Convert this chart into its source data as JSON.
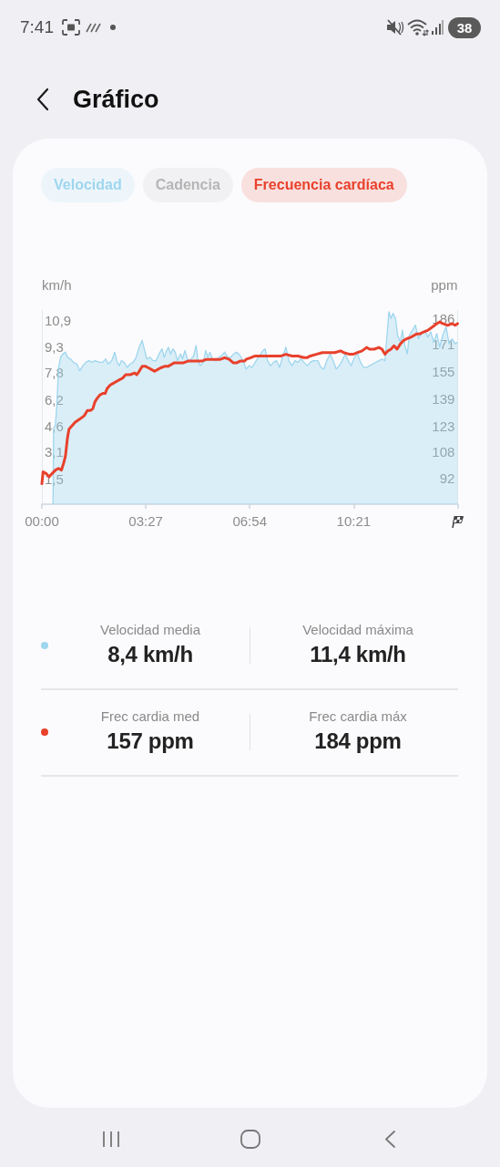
{
  "chart_data": {
    "type": "line",
    "title": "Gráfico",
    "ylabel": "km/h",
    "y2label": "ppm",
    "xlim": [
      0,
      13.8
    ],
    "xticks": [
      {
        "value": 0,
        "label": "00:00"
      },
      {
        "value": 3.45,
        "label": "03:27"
      },
      {
        "value": 6.9,
        "label": "06:54"
      },
      {
        "value": 10.35,
        "label": "10:21"
      },
      {
        "value": 13.8,
        "label": null
      }
    ],
    "ylim": [
      0,
      11.5
    ],
    "yticks": [
      {
        "value": 1.5,
        "label": "1,5"
      },
      {
        "value": 3.1,
        "label": "3,1"
      },
      {
        "value": 4.6,
        "label": "4,6"
      },
      {
        "value": 6.2,
        "label": "6,2"
      },
      {
        "value": 7.8,
        "label": "7,8"
      },
      {
        "value": 9.3,
        "label": "9,3"
      },
      {
        "value": 10.9,
        "label": "10,9"
      }
    ],
    "y2lim": [
      77,
      191
    ],
    "y2ticks": [
      92,
      108,
      123,
      139,
      155,
      171,
      186
    ],
    "legend": "top",
    "annotations": [
      "7:41",
      "38",
      "Velocidad media",
      "8,4 km/h",
      "Velocidad máxima",
      "11,4 km/h",
      "Frec cardia med",
      "157 ppm",
      "Frec cardia máx",
      "184 ppm"
    ],
    "series": [
      {
        "name": "Velocidad",
        "type": "area",
        "color": "#9ed6ee",
        "x": [
          0.37,
          0.39,
          0.45,
          0.5,
          0.55,
          0.62,
          0.7,
          0.78,
          0.85,
          0.95,
          1.05,
          1.16,
          1.26,
          1.36,
          1.46,
          1.56,
          1.66,
          1.76,
          1.92,
          2.02,
          2.12,
          2.2,
          2.32,
          2.42,
          2.5,
          2.57,
          2.64,
          2.73,
          2.83,
          2.93,
          3.03,
          3.13,
          3.23,
          3.33,
          3.41,
          3.49,
          3.59,
          3.69,
          3.79,
          3.89,
          3.99,
          4.06,
          4.14,
          4.2,
          4.27,
          4.35,
          4.43,
          4.5,
          4.6,
          4.67,
          4.75,
          4.85,
          4.96,
          5.04,
          5.12,
          5.18,
          5.26,
          5.36,
          5.44,
          5.51,
          5.58,
          5.66,
          5.77,
          5.87,
          5.97,
          6.07,
          6.17,
          6.27,
          6.37,
          6.47,
          6.58,
          6.68,
          6.78,
          6.88,
          6.98,
          7.08,
          7.23,
          7.34,
          7.41,
          7.49,
          7.59,
          7.69,
          7.79,
          7.89,
          7.99,
          8.1,
          8.2,
          8.3,
          8.4,
          8.5,
          8.6,
          8.7,
          8.81,
          8.91,
          9.01,
          9.16,
          9.26,
          9.36,
          9.46,
          9.57,
          9.67,
          9.77,
          9.87,
          9.97,
          10.07,
          10.17,
          10.27,
          10.38,
          10.48,
          10.58,
          10.68,
          10.78,
          10.88,
          10.98,
          11.09,
          11.19,
          11.29,
          11.39,
          11.46,
          11.52,
          11.59,
          11.66,
          11.74,
          11.81,
          11.9,
          11.97,
          12.05,
          12.13,
          12.2,
          12.3,
          12.4,
          12.5,
          12.6,
          12.71,
          12.81,
          12.91,
          13.01,
          13.11,
          13.21,
          13.31,
          13.42,
          13.52,
          13.62,
          13.72,
          13.8
        ],
        "values": [
          0,
          4.5,
          4.7,
          6.0,
          8.0,
          8.7,
          8.9,
          9.0,
          8.7,
          8.6,
          8.4,
          8.3,
          7.9,
          8.2,
          8.4,
          8.5,
          8.4,
          8.5,
          8.4,
          8.4,
          8.6,
          8.3,
          8.5,
          9.0,
          8.4,
          8.2,
          8.5,
          8.4,
          8.1,
          8.3,
          8.4,
          8.7,
          9.3,
          9.7,
          9.1,
          8.6,
          8.7,
          8.5,
          8.5,
          8.9,
          9.2,
          8.7,
          9.1,
          9.3,
          8.9,
          9.2,
          9.0,
          8.5,
          8.9,
          8.6,
          9.1,
          8.5,
          8.6,
          8.8,
          9.4,
          8.5,
          8.2,
          8.4,
          9.1,
          8.7,
          9.0,
          8.6,
          8.5,
          8.7,
          8.8,
          9.0,
          8.7,
          8.7,
          8.9,
          9.0,
          8.8,
          8.5,
          8.0,
          8.2,
          8.1,
          8.4,
          8.8,
          9.1,
          9.2,
          8.5,
          8.2,
          8.4,
          8.5,
          8.1,
          8.7,
          9.3,
          8.5,
          8.2,
          8.5,
          8.4,
          8.6,
          8.4,
          8.2,
          8.4,
          8.5,
          8.5,
          8.1,
          8.0,
          8.5,
          8.9,
          8.5,
          8.0,
          8.2,
          8.5,
          8.9,
          8.5,
          8.2,
          8.7,
          8.9,
          8.4,
          8.1,
          8.1,
          8.2,
          8.3,
          8.4,
          8.5,
          8.6,
          8.5,
          10.0,
          11.4,
          11.0,
          11.3,
          11.0,
          10.0,
          9.6,
          10.3,
          9.4,
          8.9,
          10.0,
          10.3,
          10.6,
          9.8,
          10.1,
          10.3,
          9.9,
          10.2,
          9.6,
          10.1,
          9.3,
          10.0,
          10.5,
          9.5,
          9.8,
          9.5,
          9.6
        ]
      },
      {
        "name": "Cadencia",
        "color": "#b5b5b5"
      },
      {
        "name": "Frecuencia cardíaca",
        "axis": "y2",
        "color": "#e8412c",
        "x": [
          0,
          0.04,
          0.14,
          0.24,
          0.34,
          0.45,
          0.55,
          0.65,
          0.72,
          0.78,
          0.85,
          0.9,
          1.0,
          1.1,
          1.26,
          1.41,
          1.51,
          1.61,
          1.69,
          1.76,
          1.83,
          1.92,
          2.02,
          2.1,
          2.17,
          2.27,
          2.37,
          2.47,
          2.57,
          2.68,
          2.78,
          2.93,
          3.08,
          3.15,
          3.23,
          3.33,
          3.43,
          3.54,
          3.64,
          3.74,
          3.84,
          3.94,
          4.09,
          4.2,
          4.3,
          4.4,
          4.55,
          4.7,
          4.85,
          5.0,
          5.16,
          5.31,
          5.46,
          5.61,
          5.77,
          5.92,
          6.07,
          6.22,
          6.35,
          6.47,
          6.58,
          6.73,
          6.78,
          6.93,
          7.08,
          7.23,
          7.39,
          7.59,
          7.79,
          7.94,
          8.1,
          8.3,
          8.5,
          8.7,
          8.8,
          8.91,
          9.11,
          9.31,
          9.51,
          9.72,
          9.92,
          10.02,
          10.22,
          10.33,
          10.48,
          10.63,
          10.78,
          10.88,
          11.03,
          11.19,
          11.29,
          11.39,
          11.49,
          11.59,
          11.69,
          11.79,
          11.9,
          12.0,
          12.1,
          12.25,
          12.35,
          12.45,
          12.55,
          12.66,
          12.81,
          12.96,
          13.11,
          13.21,
          13.31,
          13.47,
          13.62,
          13.72,
          13.8
        ],
        "values": [
          89,
          96,
          95,
          93,
          95,
          97,
          98,
          97,
          101,
          105,
          116,
          121,
          123,
          125,
          127,
          129,
          132,
          132,
          133,
          137,
          139,
          141,
          142,
          142,
          145,
          147,
          148,
          149,
          150,
          151,
          153,
          153,
          154,
          153,
          155,
          158,
          158,
          157,
          156,
          155,
          156,
          157,
          158,
          158,
          159,
          160,
          160,
          160,
          161,
          161,
          161,
          161,
          162,
          162,
          162,
          162,
          163,
          162,
          160,
          160,
          161,
          161,
          162,
          163,
          164,
          164,
          164,
          164,
          164,
          164,
          165,
          164,
          164,
          163,
          163,
          164,
          165,
          166,
          166,
          166,
          167,
          166,
          165,
          165,
          166,
          167,
          169,
          168,
          168,
          169,
          168,
          165,
          167,
          168,
          170,
          168,
          171,
          173,
          174,
          175,
          176,
          177,
          177,
          178,
          179,
          181,
          183,
          184,
          183,
          182,
          183,
          182,
          183
        ]
      }
    ]
  }
}
